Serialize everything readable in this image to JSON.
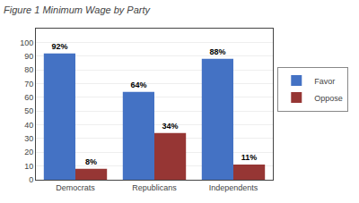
{
  "chart_data": {
    "type": "bar",
    "title": "Figure 1 Minimum Wage by Party",
    "categories": [
      "Democrats",
      "Republicans",
      "Independents"
    ],
    "series": [
      {
        "name": "Favor",
        "color": "#4472C4",
        "values": [
          92,
          64,
          88
        ],
        "value_labels": [
          "92%",
          "64%",
          "88%"
        ]
      },
      {
        "name": "Oppose",
        "color": "#963634",
        "values": [
          8,
          34,
          11
        ],
        "value_labels": [
          "8%",
          "34%",
          "11%"
        ]
      }
    ],
    "ylim": [
      0,
      110
    ],
    "yticks": [
      0,
      10,
      20,
      30,
      40,
      50,
      60,
      70,
      80,
      90,
      100
    ],
    "grid": true,
    "legend": "right",
    "data_labels": true
  }
}
